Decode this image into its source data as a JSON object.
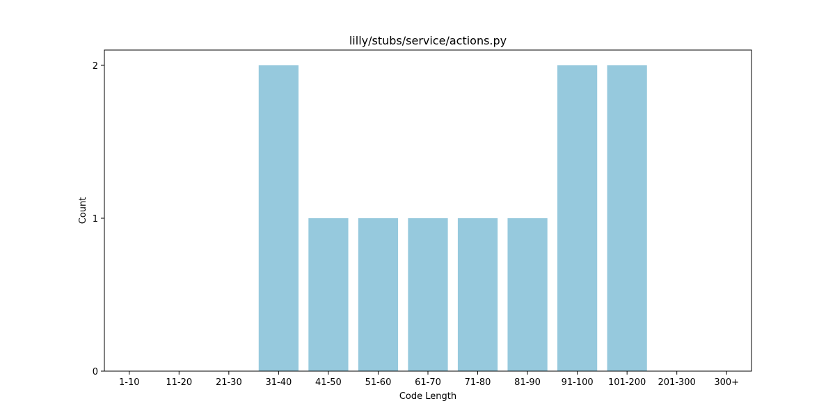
{
  "chart_data": {
    "type": "bar",
    "title": "lilly/stubs/service/actions.py",
    "xlabel": "Code Length",
    "ylabel": "Count",
    "categories": [
      "1-10",
      "11-20",
      "21-30",
      "31-40",
      "41-50",
      "51-60",
      "61-70",
      "71-80",
      "81-90",
      "91-100",
      "101-200",
      "201-300",
      "300+"
    ],
    "values": [
      0,
      0,
      0,
      2,
      1,
      1,
      1,
      1,
      1,
      2,
      2,
      0,
      0
    ],
    "ylim": [
      0,
      2.1
    ],
    "yticks": [
      0,
      1,
      2
    ],
    "bar_color": "#96c9dd",
    "grid": false,
    "legend": "none"
  }
}
